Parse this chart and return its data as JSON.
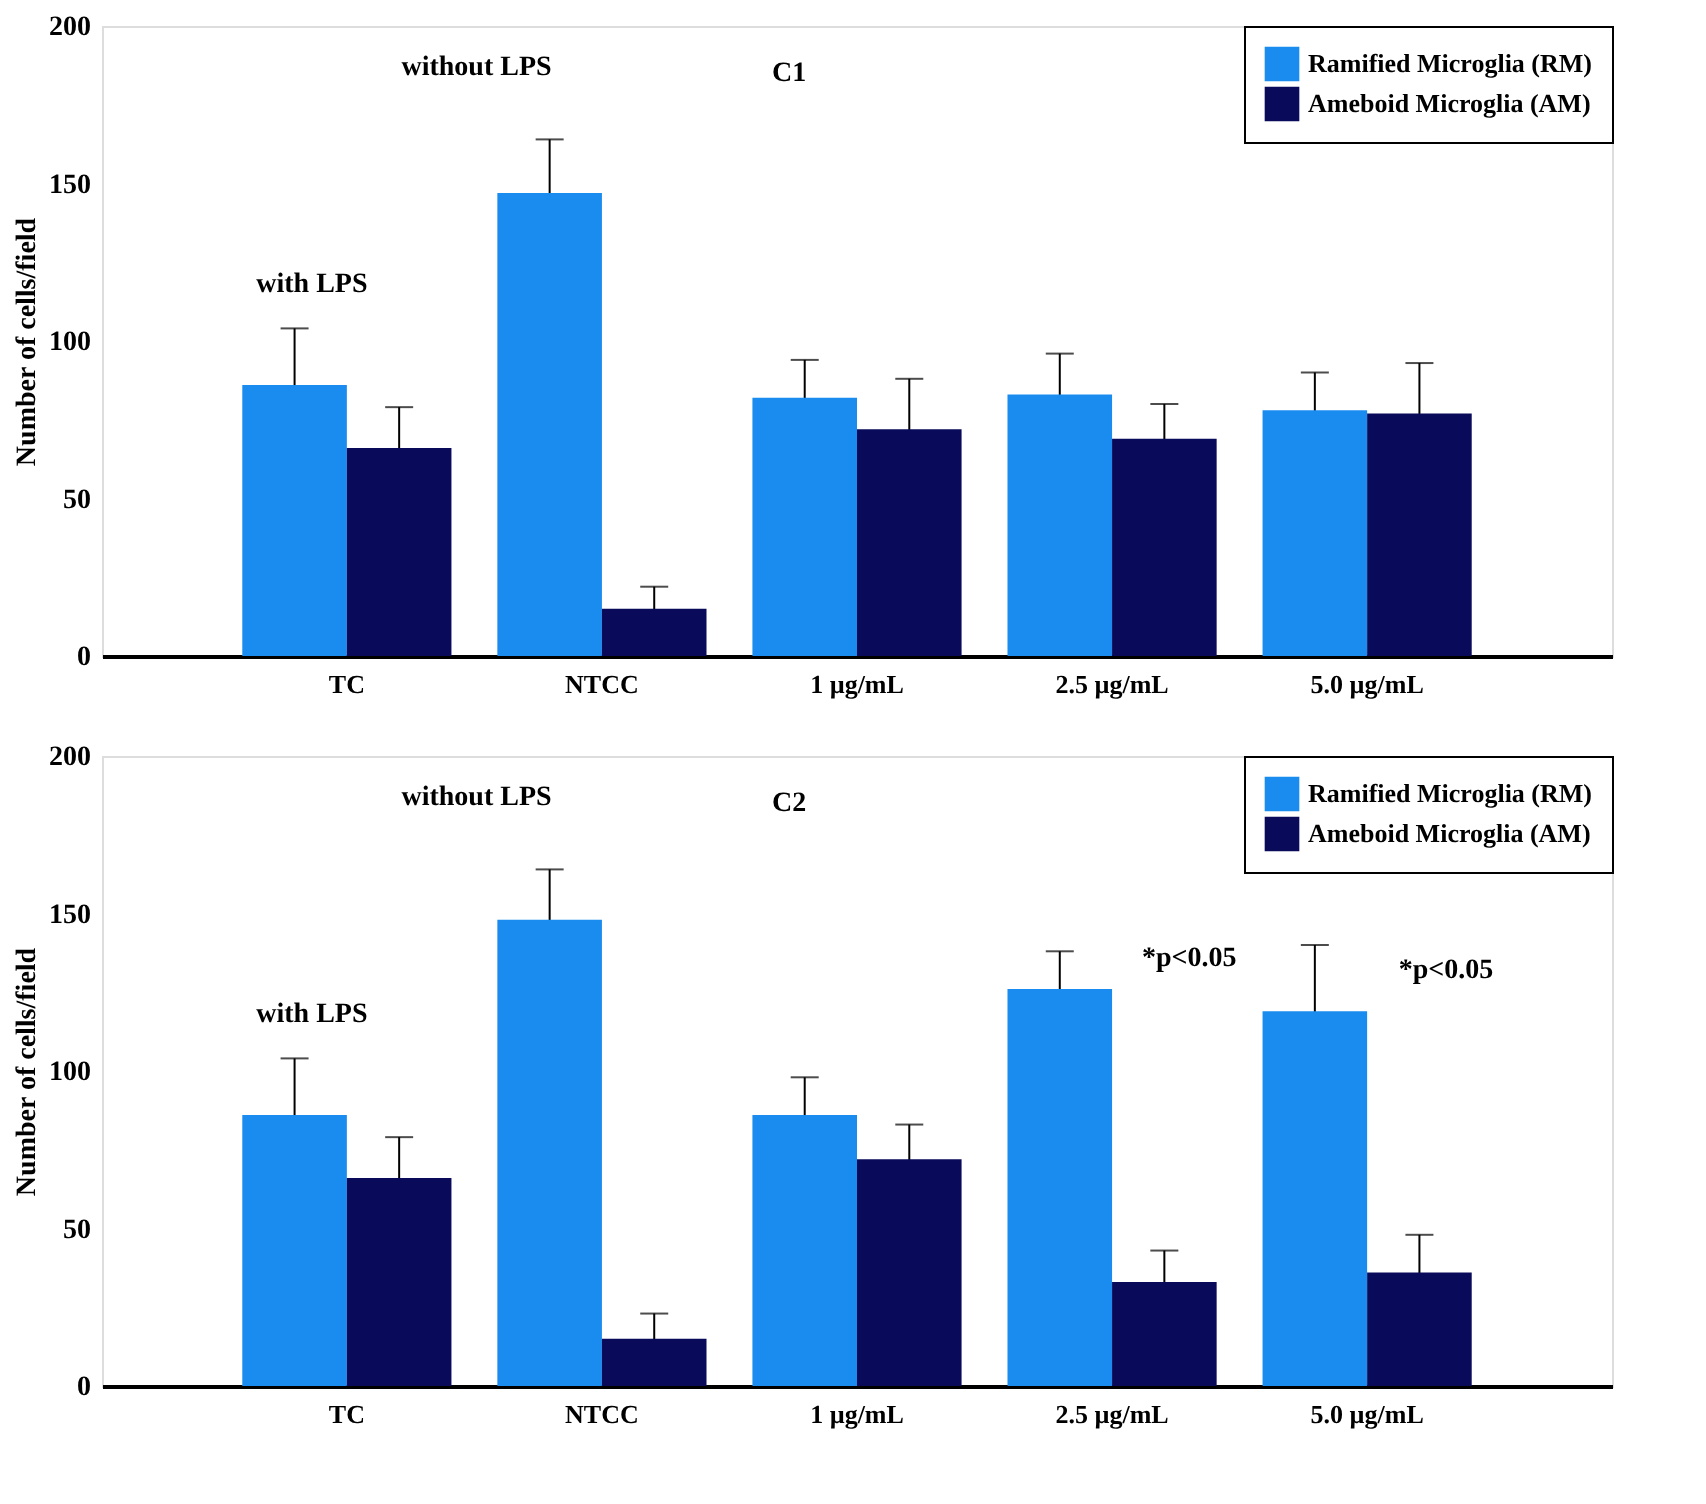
{
  "chart_data": [
    {
      "type": "bar",
      "ylabel": "Number of cells/field",
      "categories": [
        "TC",
        "NTCC",
        "1 µg/mL",
        "2.5 µg/mL",
        "5.0 µg/mL"
      ],
      "ylim": [
        0,
        200
      ],
      "yticks": [
        0,
        50,
        100,
        150,
        200
      ],
      "grid": false,
      "legend": "top right",
      "series": [
        {
          "name": "Ramified Microglia (RM)",
          "color": "#1a8cf0",
          "values": [
            86,
            147,
            82,
            83,
            78
          ],
          "errors": [
            18,
            17,
            12,
            13,
            12
          ]
        },
        {
          "name": "Ameboid Microglia (AM)",
          "color": "#0a0a5a",
          "values": [
            66,
            15,
            72,
            69,
            77
          ],
          "errors": [
            13,
            7,
            16,
            11,
            16
          ]
        }
      ],
      "annotations": [
        "C1",
        "without LPS",
        "with LPS"
      ]
    },
    {
      "type": "bar",
      "ylabel": "Number of cells/field",
      "categories": [
        "TC",
        "NTCC",
        "1 µg/mL",
        "2.5 µg/mL",
        "5.0 µg/mL"
      ],
      "ylim": [
        0,
        200
      ],
      "yticks": [
        0,
        50,
        100,
        150,
        200
      ],
      "grid": false,
      "legend": "top right",
      "series": [
        {
          "name": "Ramified Microglia (RM)",
          "color": "#1a8cf0",
          "values": [
            86,
            148,
            86,
            126,
            119
          ],
          "errors": [
            18,
            16,
            12,
            12,
            21
          ]
        },
        {
          "name": "Ameboid Microglia (AM)",
          "color": "#0a0a5a",
          "values": [
            66,
            15,
            72,
            33,
            36
          ],
          "errors": [
            13,
            8,
            11,
            10,
            12
          ]
        }
      ],
      "annotations": [
        "C2",
        "without LPS",
        "with LPS",
        "*p<0.05",
        "*p<0.05"
      ]
    }
  ]
}
